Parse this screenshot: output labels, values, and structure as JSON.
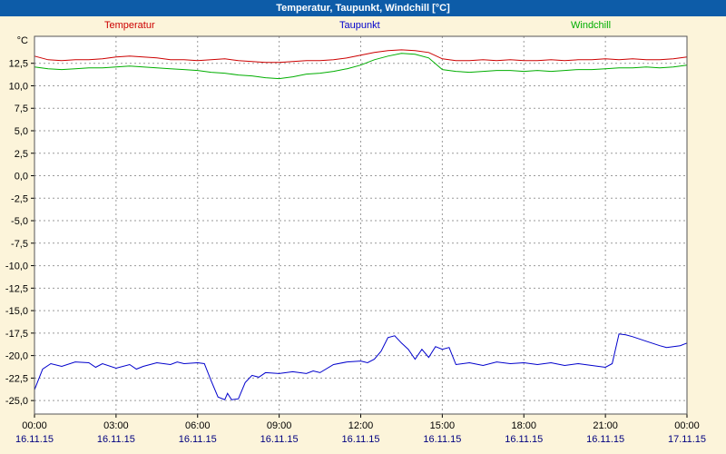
{
  "window": {
    "title": "Temperatur, Taupunkt, Windchill [°C]"
  },
  "legend": [
    {
      "label": "Temperatur",
      "color": "#cc0000"
    },
    {
      "label": "Taupunkt",
      "color": "#0000cc"
    },
    {
      "label": "Windchill",
      "color": "#00ae00"
    }
  ],
  "chart_data": {
    "type": "line",
    "title": "Temperatur, Taupunkt, Windchill [°C]",
    "xlabel": "",
    "ylabel": "°C",
    "xlim": [
      0,
      24
    ],
    "ylim": [
      -26.5,
      15.5
    ],
    "grid": "dashed",
    "legend_position": "top",
    "colors": {
      "background": "#fcf4da",
      "plot": "#ffffff",
      "grid": "#9a9a9a",
      "border": "#555555",
      "time_labels": "#000000",
      "dates": "#000080"
    },
    "y_ticks": [
      {
        "v": 12.5,
        "label": "12,5"
      },
      {
        "v": 10.0,
        "label": "10,0"
      },
      {
        "v": 7.5,
        "label": "7,5"
      },
      {
        "v": 5.0,
        "label": "5,0"
      },
      {
        "v": 2.5,
        "label": "2,5"
      },
      {
        "v": 0.0,
        "label": "0,0"
      },
      {
        "v": -2.5,
        "label": "-2,5"
      },
      {
        "v": -5.0,
        "label": "-5,0"
      },
      {
        "v": -7.5,
        "label": "-7,5"
      },
      {
        "v": -10.0,
        "label": "-10,0"
      },
      {
        "v": -12.5,
        "label": "-12,5"
      },
      {
        "v": -15.0,
        "label": "-15,0"
      },
      {
        "v": -17.5,
        "label": "-17,5"
      },
      {
        "v": -20.0,
        "label": "-20,0"
      },
      {
        "v": -22.5,
        "label": "-22,5"
      },
      {
        "v": -25.0,
        "label": "-25,0"
      }
    ],
    "x_ticks": [
      {
        "h": 0,
        "time": "00:00",
        "date": "16.11.15"
      },
      {
        "h": 3,
        "time": "03:00",
        "date": "16.11.15"
      },
      {
        "h": 6,
        "time": "06:00",
        "date": "16.11.15"
      },
      {
        "h": 9,
        "time": "09:00",
        "date": "16.11.15"
      },
      {
        "h": 12,
        "time": "12:00",
        "date": "16.11.15"
      },
      {
        "h": 15,
        "time": "15:00",
        "date": "16.11.15"
      },
      {
        "h": 18,
        "time": "18:00",
        "date": "16.11.15"
      },
      {
        "h": 21,
        "time": "21:00",
        "date": "16.11.15"
      },
      {
        "h": 24,
        "time": "00:00",
        "date": "17.11.15"
      }
    ],
    "x": [
      0,
      0.5,
      1,
      1.5,
      2,
      2.5,
      3,
      3.5,
      4,
      4.5,
      5,
      5.5,
      6,
      6.5,
      7,
      7.5,
      8,
      8.5,
      9,
      9.5,
      10,
      10.5,
      11,
      11.5,
      12,
      12.5,
      13,
      13.5,
      14,
      14.5,
      15,
      15.5,
      16,
      16.5,
      17,
      17.5,
      18,
      18.5,
      19,
      19.5,
      20,
      20.5,
      21,
      21.5,
      22,
      22.5,
      23,
      23.5,
      24
    ],
    "series": [
      {
        "name": "Temperatur",
        "color": "#cc0000",
        "values": [
          13.3,
          12.9,
          12.8,
          12.9,
          12.9,
          13.0,
          13.2,
          13.3,
          13.2,
          13.1,
          12.9,
          12.9,
          12.8,
          12.9,
          13.0,
          12.8,
          12.7,
          12.6,
          12.6,
          12.7,
          12.8,
          12.8,
          12.9,
          13.1,
          13.4,
          13.7,
          13.9,
          14.0,
          13.9,
          13.7,
          13.0,
          12.8,
          12.8,
          12.9,
          12.8,
          12.9,
          12.8,
          12.8,
          12.9,
          12.8,
          12.9,
          12.9,
          13.0,
          12.9,
          13.0,
          12.9,
          12.9,
          13.0,
          13.2
        ]
      },
      {
        "name": "Taupunkt",
        "color": "#0000cc",
        "x": [
          0,
          0.3,
          0.6,
          1,
          1.5,
          2,
          2.25,
          2.5,
          3,
          3.5,
          3.75,
          4,
          4.5,
          5,
          5.25,
          5.5,
          6,
          6.25,
          6.5,
          6.75,
          7,
          7.1,
          7.25,
          7.5,
          7.75,
          8,
          8.25,
          8.5,
          9,
          9.5,
          10,
          10.25,
          10.5,
          11,
          11.5,
          12,
          12.25,
          12.5,
          12.75,
          13,
          13.25,
          13.5,
          13.75,
          14,
          14.25,
          14.5,
          14.75,
          15,
          15.25,
          15.5,
          16,
          16.5,
          17,
          17.5,
          18,
          18.5,
          19,
          19.5,
          20,
          20.5,
          21,
          21.25,
          21.5,
          21.75,
          22,
          22.5,
          23,
          23.25,
          23.5,
          23.75,
          24
        ],
        "values": [
          -23.8,
          -21.5,
          -20.9,
          -21.2,
          -20.7,
          -20.8,
          -21.3,
          -20.9,
          -21.4,
          -21.0,
          -21.5,
          -21.2,
          -20.8,
          -21.0,
          -20.7,
          -20.9,
          -20.8,
          -20.9,
          -22.8,
          -24.6,
          -24.9,
          -24.2,
          -24.9,
          -24.8,
          -23.0,
          -22.2,
          -22.4,
          -21.9,
          -22.0,
          -21.8,
          -22.0,
          -21.7,
          -21.9,
          -21.0,
          -20.7,
          -20.6,
          -20.8,
          -20.4,
          -19.5,
          -18.0,
          -17.8,
          -18.6,
          -19.3,
          -20.4,
          -19.3,
          -20.2,
          -19.0,
          -19.3,
          -19.1,
          -21.0,
          -20.8,
          -21.1,
          -20.7,
          -20.9,
          -20.8,
          -21.0,
          -20.8,
          -21.1,
          -20.9,
          -21.1,
          -21.3,
          -20.9,
          -17.6,
          -17.7,
          -17.9,
          -18.4,
          -18.9,
          -19.1,
          -19.0,
          -18.9,
          -18.6
        ]
      },
      {
        "name": "Windchill",
        "color": "#00ae00",
        "values": [
          12.1,
          11.9,
          11.8,
          11.9,
          12.0,
          12.0,
          12.1,
          12.2,
          12.1,
          12.0,
          11.9,
          11.8,
          11.7,
          11.5,
          11.4,
          11.2,
          11.1,
          10.9,
          10.8,
          11.0,
          11.3,
          11.4,
          11.6,
          11.9,
          12.3,
          12.9,
          13.3,
          13.6,
          13.5,
          13.1,
          11.8,
          11.6,
          11.5,
          11.6,
          11.7,
          11.7,
          11.6,
          11.7,
          11.6,
          11.7,
          11.8,
          11.8,
          11.9,
          12.0,
          12.0,
          12.1,
          12.0,
          12.1,
          12.3
        ]
      }
    ]
  }
}
